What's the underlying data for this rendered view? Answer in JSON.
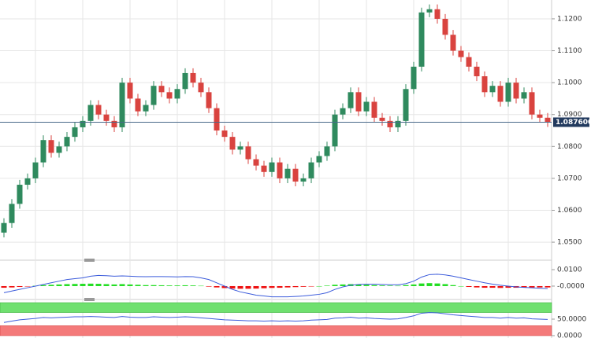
{
  "chart_data": {
    "type": "candlestick",
    "up_color": "#2f8a5e",
    "down_color": "#d9433f",
    "grid": true,
    "ylim": [
      1.0446,
      1.1259
    ],
    "yticks": [
      {
        "value": 1.05,
        "label": "1.0500"
      },
      {
        "value": 1.06,
        "label": "1.0600"
      },
      {
        "value": 1.07,
        "label": "1.0700"
      },
      {
        "value": 1.08,
        "label": "1.0800"
      },
      {
        "value": 1.09,
        "label": "1.0900"
      },
      {
        "value": 1.1,
        "label": "1.1000"
      },
      {
        "value": 1.11,
        "label": "1.1100"
      },
      {
        "value": 1.12,
        "label": "1.1200"
      }
    ],
    "last_price": {
      "value": 1.0876,
      "label": "1.087600"
    },
    "open": [
      1.053,
      1.056,
      1.062,
      1.068,
      1.07,
      1.075,
      1.082,
      1.078,
      1.08,
      1.083,
      1.086,
      1.088,
      1.093,
      1.09,
      1.088,
      1.086,
      1.1,
      1.095,
      1.091,
      1.093,
      1.099,
      1.097,
      1.095,
      1.098,
      1.103,
      1.1,
      1.097,
      1.092,
      1.085,
      1.083,
      1.079,
      1.08,
      1.076,
      1.074,
      1.072,
      1.075,
      1.07,
      1.073,
      1.069,
      1.07,
      1.075,
      1.077,
      1.08,
      1.09,
      1.092,
      1.097,
      1.091,
      1.094,
      1.089,
      1.088,
      1.086,
      1.088,
      1.098,
      1.105,
      1.122,
      1.123,
      1.12,
      1.115,
      1.11,
      1.108,
      1.105,
      1.102,
      1.097,
      1.099,
      1.094,
      1.1,
      1.095,
      1.097,
      1.09,
      1.089
    ],
    "high": [
      1.0575,
      1.0635,
      1.0695,
      1.0715,
      1.0765,
      1.0835,
      1.0835,
      1.0815,
      1.0845,
      1.0875,
      1.0895,
      1.0945,
      1.0945,
      1.0915,
      1.0895,
      1.1015,
      1.1015,
      1.0965,
      1.0945,
      1.1005,
      1.1005,
      1.0985,
      1.0995,
      1.1045,
      1.1045,
      1.1015,
      1.0985,
      1.0935,
      1.0865,
      1.0845,
      1.0815,
      1.0815,
      1.0775,
      1.0755,
      1.0765,
      1.0765,
      1.0745,
      1.0745,
      1.0715,
      1.0765,
      1.0785,
      1.0815,
      1.0915,
      1.0935,
      1.0985,
      1.0985,
      1.0955,
      1.0955,
      1.0905,
      1.0895,
      1.0895,
      1.0995,
      1.1065,
      1.1235,
      1.1245,
      1.1245,
      1.1215,
      1.1165,
      1.1115,
      1.1095,
      1.1065,
      1.1035,
      1.1005,
      1.1005,
      1.1015,
      1.1015,
      1.0985,
      1.0985,
      1.0915,
      1.0905
    ],
    "low": [
      1.0515,
      1.0545,
      1.0605,
      1.0665,
      1.0685,
      1.0735,
      1.0765,
      1.0765,
      1.0785,
      1.0815,
      1.0845,
      1.0865,
      1.0885,
      1.0865,
      1.0845,
      1.0845,
      1.0935,
      1.0895,
      1.0895,
      1.0915,
      1.0955,
      1.0935,
      1.0935,
      1.0965,
      1.0985,
      1.0955,
      1.0905,
      1.0835,
      1.0815,
      1.0775,
      1.0775,
      1.0745,
      1.0725,
      1.0705,
      1.0705,
      1.0685,
      1.0685,
      1.0675,
      1.0675,
      1.0685,
      1.0735,
      1.0755,
      1.0785,
      1.0885,
      1.0905,
      1.0895,
      1.0895,
      1.0875,
      1.0865,
      1.0845,
      1.0845,
      1.0865,
      1.0965,
      1.1035,
      1.1205,
      1.1185,
      1.1135,
      1.1085,
      1.1065,
      1.1035,
      1.1005,
      1.0955,
      1.0955,
      1.0925,
      1.0925,
      1.0935,
      1.0935,
      1.0885,
      1.0875,
      1.0861
    ],
    "close": [
      1.056,
      1.062,
      1.068,
      1.07,
      1.075,
      1.082,
      1.078,
      1.08,
      1.083,
      1.086,
      1.088,
      1.093,
      1.09,
      1.088,
      1.086,
      1.1,
      1.095,
      1.091,
      1.093,
      1.099,
      1.097,
      1.095,
      1.098,
      1.103,
      1.1,
      1.097,
      1.092,
      1.085,
      1.083,
      1.079,
      1.08,
      1.076,
      1.074,
      1.072,
      1.075,
      1.07,
      1.073,
      1.069,
      1.07,
      1.075,
      1.077,
      1.08,
      1.09,
      1.092,
      1.097,
      1.091,
      1.094,
      1.089,
      1.088,
      1.086,
      1.088,
      1.098,
      1.105,
      1.122,
      1.123,
      1.12,
      1.115,
      1.11,
      1.108,
      1.105,
      1.102,
      1.097,
      1.099,
      1.094,
      1.1,
      1.095,
      1.097,
      1.09,
      1.089,
      1.0876
    ],
    "macd": {
      "ylim": [
        -0.0067,
        0.0148
      ],
      "yticks": [
        {
          "value": 0.01,
          "label": "0.0100"
        },
        {
          "value": 0,
          "label": "-0.0000"
        }
      ],
      "line_color": "#3b5bdb",
      "up_color": "#22dd22",
      "down_color": "#ee1111",
      "line": [
        -0.004,
        -0.003,
        -0.002,
        -0.001,
        0.0,
        0.001,
        0.002,
        0.003,
        0.004,
        0.0045,
        0.005,
        0.006,
        0.0065,
        0.0063,
        0.006,
        0.0062,
        0.006,
        0.0058,
        0.0057,
        0.0058,
        0.0058,
        0.0057,
        0.0056,
        0.0058,
        0.0057,
        0.005,
        0.004,
        0.002,
        0.0,
        -0.002,
        -0.0035,
        -0.0045,
        -0.0055,
        -0.006,
        -0.0065,
        -0.0065,
        -0.0065,
        -0.0063,
        -0.006,
        -0.0055,
        -0.005,
        -0.004,
        -0.002,
        -0.0005,
        0.0005,
        0.001,
        0.0012,
        0.0012,
        0.001,
        0.0008,
        0.0008,
        0.0015,
        0.003,
        0.0055,
        0.007,
        0.0072,
        0.0068,
        0.006,
        0.005,
        0.004,
        0.003,
        0.002,
        0.0012,
        0.0005,
        0,
        -0.0005,
        -0.0008,
        -0.001,
        -0.0013,
        -0.0015
      ],
      "histogram": [
        -0.001,
        -0.0008,
        -0.0005,
        -0.0002,
        0.0002,
        0.0006,
        0.0008,
        0.001,
        0.0012,
        0.0013,
        0.0014,
        0.0015,
        0.0014,
        0.0012,
        0.001,
        0.0012,
        0.001,
        0.0008,
        0.0006,
        0.0006,
        0.0005,
        0.0004,
        0.0004,
        0.0005,
        0.0004,
        0.0002,
        -0.0003,
        -0.0008,
        -0.0012,
        -0.0015,
        -0.0016,
        -0.0016,
        -0.0015,
        -0.0013,
        -0.0011,
        -0.001,
        -0.0008,
        -0.0006,
        -0.0004,
        -0.0002,
        0.0,
        0.0003,
        0.0008,
        0.001,
        0.0012,
        0.001,
        0.0008,
        0.0006,
        0.0004,
        0.0003,
        0.0002,
        0.0006,
        0.001,
        0.0016,
        0.0018,
        0.0016,
        0.0012,
        0.0006,
        0.0,
        -0.0005,
        -0.0008,
        -0.001,
        -0.001,
        -0.0011,
        -0.001,
        -0.001,
        -0.0009,
        -0.0009,
        -0.0008,
        -0.0008
      ]
    },
    "oscillator": {
      "ylim": [
        0,
        100
      ],
      "yticks": [
        {
          "value": 50,
          "label": "50.0000"
        },
        {
          "value": 0,
          "label": "0.0000"
        }
      ],
      "overbought": 70,
      "oversold": 30,
      "overbought_color": "#6fe06f",
      "oversold_color": "#f47a7a",
      "line_color": "#3b5bdb",
      "values": [
        40,
        44,
        48,
        50,
        52,
        55,
        54,
        55,
        56,
        57,
        57,
        58,
        57,
        56,
        55,
        58,
        56,
        55,
        55,
        57,
        56,
        55,
        56,
        57,
        56,
        54,
        52,
        50,
        48,
        47,
        46,
        45,
        45,
        44,
        45,
        44,
        45,
        44,
        45,
        47,
        48,
        49,
        53,
        54,
        56,
        53,
        54,
        52,
        51,
        50,
        51,
        55,
        60,
        68,
        70,
        69,
        66,
        63,
        61,
        59,
        57,
        55,
        55,
        53,
        55,
        53,
        54,
        51,
        50,
        49
      ]
    }
  }
}
